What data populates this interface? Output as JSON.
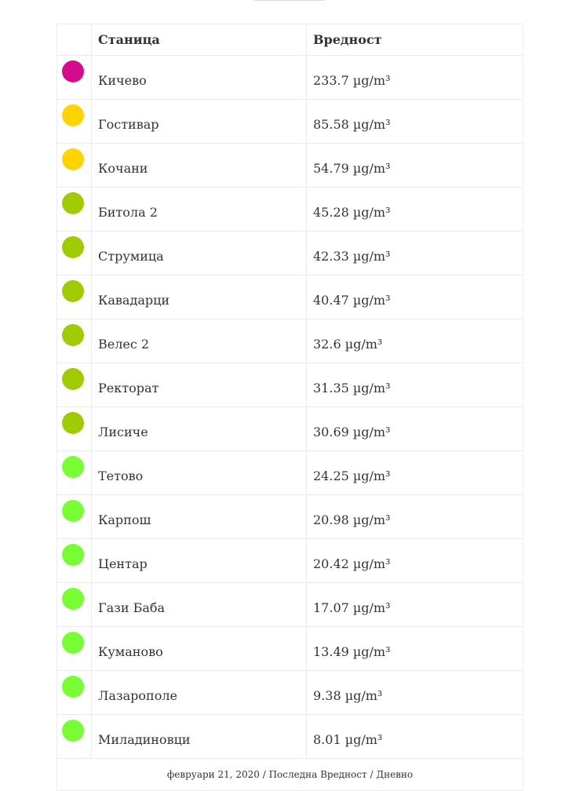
{
  "table": {
    "headers": {
      "station": "Станица",
      "value": "Вредност"
    },
    "colors": {
      "very_high": "#d50b8e",
      "moderate": "#ffd400",
      "fair": "#a0cb00",
      "good": "#77ff33"
    },
    "rows": [
      {
        "station": "Кичево",
        "value": "233.7 µg/m³",
        "level": "very_high",
        "color": "#d50b8e"
      },
      {
        "station": "Гостивар",
        "value": "85.58 µg/m³",
        "level": "moderate",
        "color": "#ffd400"
      },
      {
        "station": "Кочани",
        "value": "54.79 µg/m³",
        "level": "moderate",
        "color": "#ffd400"
      },
      {
        "station": "Битола 2",
        "value": "45.28 µg/m³",
        "level": "fair",
        "color": "#a0cb00"
      },
      {
        "station": "Струмица",
        "value": "42.33 µg/m³",
        "level": "fair",
        "color": "#a0cb00"
      },
      {
        "station": "Кавадарци",
        "value": "40.47 µg/m³",
        "level": "fair",
        "color": "#a0cb00"
      },
      {
        "station": "Велес 2",
        "value": "32.6 µg/m³",
        "level": "fair",
        "color": "#a0cb00"
      },
      {
        "station": "Ректорат",
        "value": "31.35 µg/m³",
        "level": "fair",
        "color": "#a0cb00"
      },
      {
        "station": "Лисиче",
        "value": "30.69 µg/m³",
        "level": "fair",
        "color": "#a0cb00"
      },
      {
        "station": "Тетово",
        "value": "24.25 µg/m³",
        "level": "good",
        "color": "#77ff33"
      },
      {
        "station": "Карпош",
        "value": "20.98 µg/m³",
        "level": "good",
        "color": "#77ff33"
      },
      {
        "station": "Центар",
        "value": "20.42 µg/m³",
        "level": "good",
        "color": "#77ff33"
      },
      {
        "station": "Гази Баба",
        "value": "17.07 µg/m³",
        "level": "good",
        "color": "#77ff33"
      },
      {
        "station": "Куманово",
        "value": "13.49 µg/m³",
        "level": "good",
        "color": "#77ff33"
      },
      {
        "station": "Лазарополе",
        "value": "9.38 µg/m³",
        "level": "good",
        "color": "#77ff33"
      },
      {
        "station": "Миладиновци",
        "value": "8.01 µg/m³",
        "level": "good",
        "color": "#77ff33"
      }
    ],
    "footer": "февруари 21, 2020 / Последна Вредност / Дневно"
  }
}
